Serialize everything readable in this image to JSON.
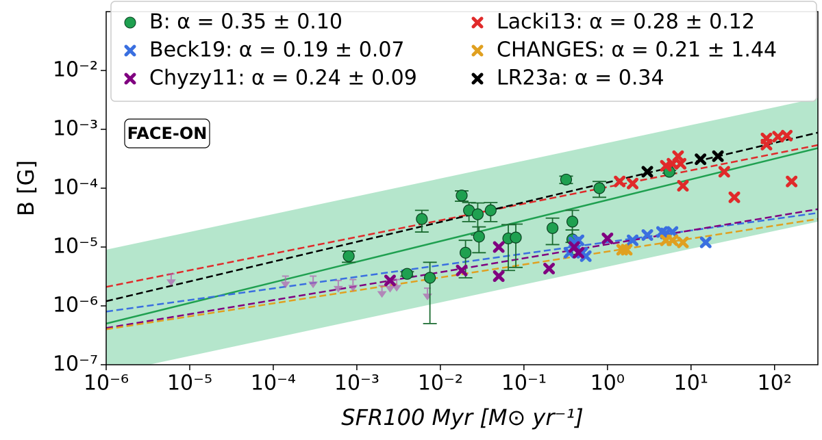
{
  "chart_data": {
    "type": "scatter",
    "xscale": "log",
    "yscale": "log",
    "xlabel": "SFR100 Myr [M⊙ yr⁻¹]",
    "ylabel": "B [G]",
    "annotation": "FACE-ON",
    "xlim": [
      1e-06,
      330
    ],
    "ylim": [
      1e-07,
      0.1
    ],
    "xticks": [
      {
        "value": 1e-06,
        "label": "10⁻⁶"
      },
      {
        "value": 1e-05,
        "label": "10⁻⁵"
      },
      {
        "value": 0.0001,
        "label": "10⁻⁴"
      },
      {
        "value": 0.001,
        "label": "10⁻³"
      },
      {
        "value": 0.01,
        "label": "10⁻²"
      },
      {
        "value": 0.1,
        "label": "10⁻¹"
      },
      {
        "value": 1,
        "label": "10⁰"
      },
      {
        "value": 10,
        "label": "10¹"
      },
      {
        "value": 100,
        "label": "10²"
      }
    ],
    "yticks": [
      {
        "value": 1e-07,
        "label": "10⁻⁷"
      },
      {
        "value": 1e-06,
        "label": "10⁻⁶"
      },
      {
        "value": 1e-05,
        "label": "10⁻⁵"
      },
      {
        "value": 0.0001,
        "label": "10⁻⁴"
      },
      {
        "value": 0.001,
        "label": "10⁻³"
      },
      {
        "value": 0.01,
        "label": "10⁻²"
      }
    ],
    "band": {
      "color": "#b5e6cc",
      "x": [
        1e-06,
        330
      ],
      "lower": [
        7e-08,
        2.7e-05
      ],
      "upper": [
        9e-06,
        0.0034
      ]
    },
    "fit_x": [
      1e-06,
      330
    ],
    "upper_limits": {
      "color": "#b060b0",
      "x": [
        6e-06,
        0.00014,
        0.0003,
        0.0006,
        0.0009,
        0.002,
        0.0025,
        0.003,
        0.007
      ],
      "values": [
        3.5e-06,
        3.2e-06,
        3.2e-06,
        2.7e-06,
        2.8e-06,
        2.2e-06,
        2.7e-06,
        2.8e-06,
        2e-06
      ]
    },
    "series": [
      {
        "name": "B: α = 0.35 ± 0.10",
        "color": "#1fa050",
        "marker": "circle",
        "fit_dash": false,
        "fit": [
          5e-07,
          0.00048
        ],
        "x": [
          0.0008,
          0.004,
          0.0075,
          0.006,
          0.018,
          0.022,
          0.02,
          0.028,
          0.029,
          0.04,
          0.065,
          0.08,
          0.22,
          0.32,
          0.38,
          0.38,
          0.8,
          5.5
        ],
        "values": [
          7e-06,
          3.5e-06,
          3e-06,
          3e-05,
          7.5e-05,
          4.2e-05,
          8e-06,
          3.6e-05,
          1.5e-05,
          4.2e-05,
          1.4e-05,
          1.45e-05,
          2.1e-05,
          0.00014,
          2.7e-05,
          1.35e-05,
          0.0001,
          0.00019
        ],
        "err": [
          1.5e-06,
          3e-07,
          2.5e-06,
          1.2e-05,
          1.5e-05,
          1.5e-05,
          5e-06,
          2e-05,
          7e-06,
          1.5e-05,
          1e-05,
          1e-05,
          1e-05,
          2e-05,
          1.5e-05,
          6e-06,
          3e-05,
          1e-05
        ]
      },
      {
        "name": "Beck19: α = 0.19 ± 0.07",
        "color": "#3a6fe0",
        "marker": "x",
        "fit_dash": true,
        "fit": [
          8e-07,
          3.8e-05
        ],
        "x": [
          0.35,
          0.4,
          0.45,
          0.5,
          0.55,
          2,
          3,
          4.5,
          5,
          6,
          15
        ],
        "values": [
          8e-06,
          1.2e-05,
          1.3e-05,
          8e-06,
          7e-06,
          1.3e-05,
          1.6e-05,
          1.8e-05,
          1.7e-05,
          1.8e-05,
          1.2e-05
        ]
      },
      {
        "name": "Chyzy11: α = 0.24 ± 0.09",
        "color": "#800080",
        "marker": "x",
        "fit_dash": true,
        "fit": [
          4.2e-07,
          4.4e-05
        ],
        "x": [
          0.018,
          0.05,
          0.05,
          0.2,
          0.4,
          0.45,
          1,
          0.0025
        ],
        "values": [
          4e-06,
          1e-05,
          3.2e-06,
          4.3e-06,
          1e-05,
          8e-06,
          1.4e-05,
          2.7e-06
        ]
      },
      {
        "name": "Lacki13: α = 0.28 ± 0.12",
        "color": "#e02a2a",
        "marker": "x",
        "fit_dash": true,
        "fit": [
          2.1e-06,
          0.00054
        ],
        "x": [
          1.4,
          2,
          5,
          6,
          7,
          7.5,
          8,
          25,
          33,
          80,
          80,
          110,
          140,
          160
        ],
        "values": [
          0.00013,
          0.00012,
          0.00024,
          0.00026,
          0.00035,
          0.00026,
          0.00011,
          0.00019,
          7e-05,
          0.00055,
          0.0007,
          0.00075,
          0.00078,
          0.00013
        ]
      },
      {
        "name": "CHANGES: α = 0.21 ± 1.44",
        "color": "#e0a020",
        "marker": "x",
        "fit_dash": true,
        "fit": [
          4e-07,
          3e-05
        ],
        "x": [
          1.5,
          1.7,
          5,
          6,
          8
        ],
        "values": [
          9e-06,
          9e-06,
          1.3e-05,
          1.3e-05,
          1.2e-05
        ]
      },
      {
        "name": "LR23a: α = 0.34",
        "color": "#000000",
        "marker": "x",
        "fit_dash": true,
        "fit": [
          1.2e-06,
          0.00088
        ],
        "x": [
          3,
          13,
          21
        ],
        "values": [
          0.00019,
          0.00031,
          0.00035
        ]
      }
    ]
  }
}
